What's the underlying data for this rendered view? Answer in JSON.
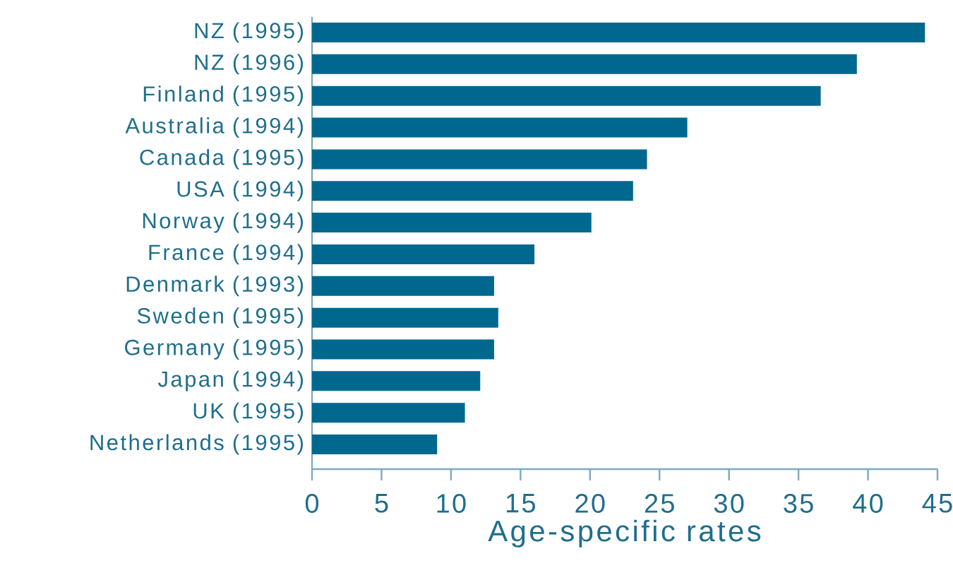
{
  "chart_data": {
    "type": "bar",
    "orientation": "horizontal",
    "xlabel": "Age-specific rates",
    "categories": [
      "NZ (1995)",
      "NZ (1996)",
      "Finland (1995)",
      "Australia (1994)",
      "Canada (1995)",
      "USA (1994)",
      "Norway (1994)",
      "France (1994)",
      "Denmark (1993)",
      "Sweden (1995)",
      "Germany (1995)",
      "Japan (1994)",
      "UK (1995)",
      "Netherlands (1995)"
    ],
    "values": [
      44.1,
      39.2,
      36.6,
      27.0,
      24.1,
      23.1,
      20.1,
      16.0,
      13.1,
      13.4,
      13.1,
      12.1,
      11.0,
      9.0
    ],
    "color": "#00688f",
    "xlim": [
      0,
      45
    ],
    "xticks": [
      0,
      5,
      10,
      15,
      20,
      25,
      30,
      35,
      40,
      45
    ]
  }
}
